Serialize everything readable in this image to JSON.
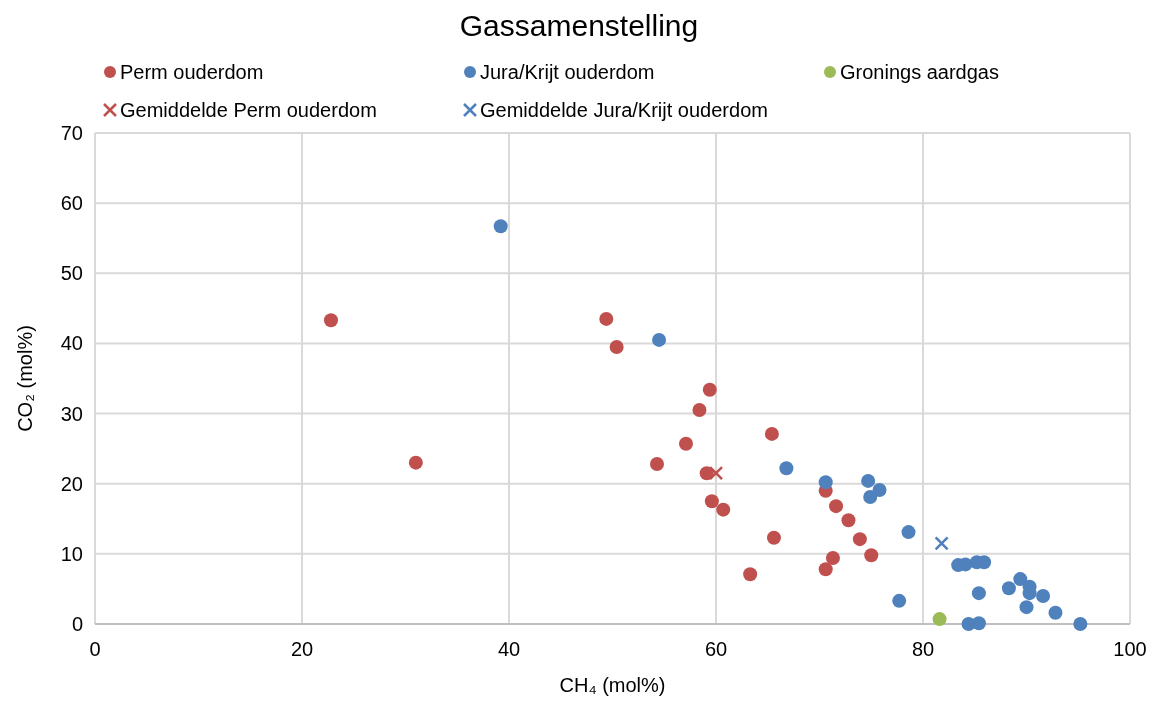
{
  "chart_data": {
    "type": "scatter",
    "title": "Gassamenstelling",
    "xlabel": "CH₄ (mol%)",
    "ylabel": "CO₂ (mol%)",
    "xlim": [
      0,
      100
    ],
    "ylim": [
      0,
      70
    ],
    "xticks": [
      0,
      20,
      40,
      60,
      80,
      100
    ],
    "yticks": [
      0,
      10,
      20,
      30,
      40,
      50,
      60,
      70
    ],
    "grid": true,
    "legend": "top",
    "series": [
      {
        "name": "Perm ouderdom",
        "color": "#c0504d",
        "marker": "circle",
        "x": [
          22.8,
          31.0,
          49.4,
          50.4,
          59.4,
          58.4,
          57.1,
          54.3,
          59.1,
          59.6,
          60.7,
          65.4,
          65.6,
          63.3,
          70.6,
          71.6,
          72.8,
          73.9,
          75.0,
          71.3,
          70.6
        ],
        "values": [
          43.3,
          23.0,
          43.5,
          39.5,
          33.4,
          30.5,
          25.7,
          22.8,
          21.5,
          17.5,
          16.3,
          27.1,
          12.3,
          7.1,
          19.0,
          16.8,
          14.8,
          12.1,
          9.8,
          9.4,
          7.8
        ]
      },
      {
        "name": "Jura/Krijt ouderdom",
        "color": "#4f81bd",
        "marker": "circle",
        "x": [
          39.2,
          54.5,
          66.8,
          70.6,
          74.7,
          75.8,
          74.9,
          78.6,
          77.7,
          83.4,
          84.1,
          85.2,
          85.9,
          85.4,
          84.4,
          85.4,
          88.3,
          89.4,
          90.3,
          90.3,
          91.6,
          90.0,
          92.8,
          95.2
        ],
        "values": [
          56.7,
          40.5,
          22.2,
          20.2,
          20.4,
          19.1,
          18.1,
          13.1,
          3.3,
          8.4,
          8.5,
          8.8,
          8.8,
          4.4,
          0,
          0.1,
          5.1,
          6.4,
          5.3,
          4.4,
          4.0,
          2.4,
          1.6,
          0
        ]
      },
      {
        "name": "Gronings aardgas",
        "color": "#9bbb59",
        "marker": "circle",
        "x": [
          81.6
        ],
        "values": [
          0.7
        ]
      },
      {
        "name": "Gemiddelde Perm ouderdom",
        "color": "#c0504d",
        "marker": "cross",
        "x": [
          60.0
        ],
        "values": [
          21.5
        ]
      },
      {
        "name": "Gemiddelde Jura/Krijt ouderdom",
        "color": "#4f81bd",
        "marker": "cross",
        "x": [
          81.8
        ],
        "values": [
          11.5
        ]
      }
    ]
  }
}
